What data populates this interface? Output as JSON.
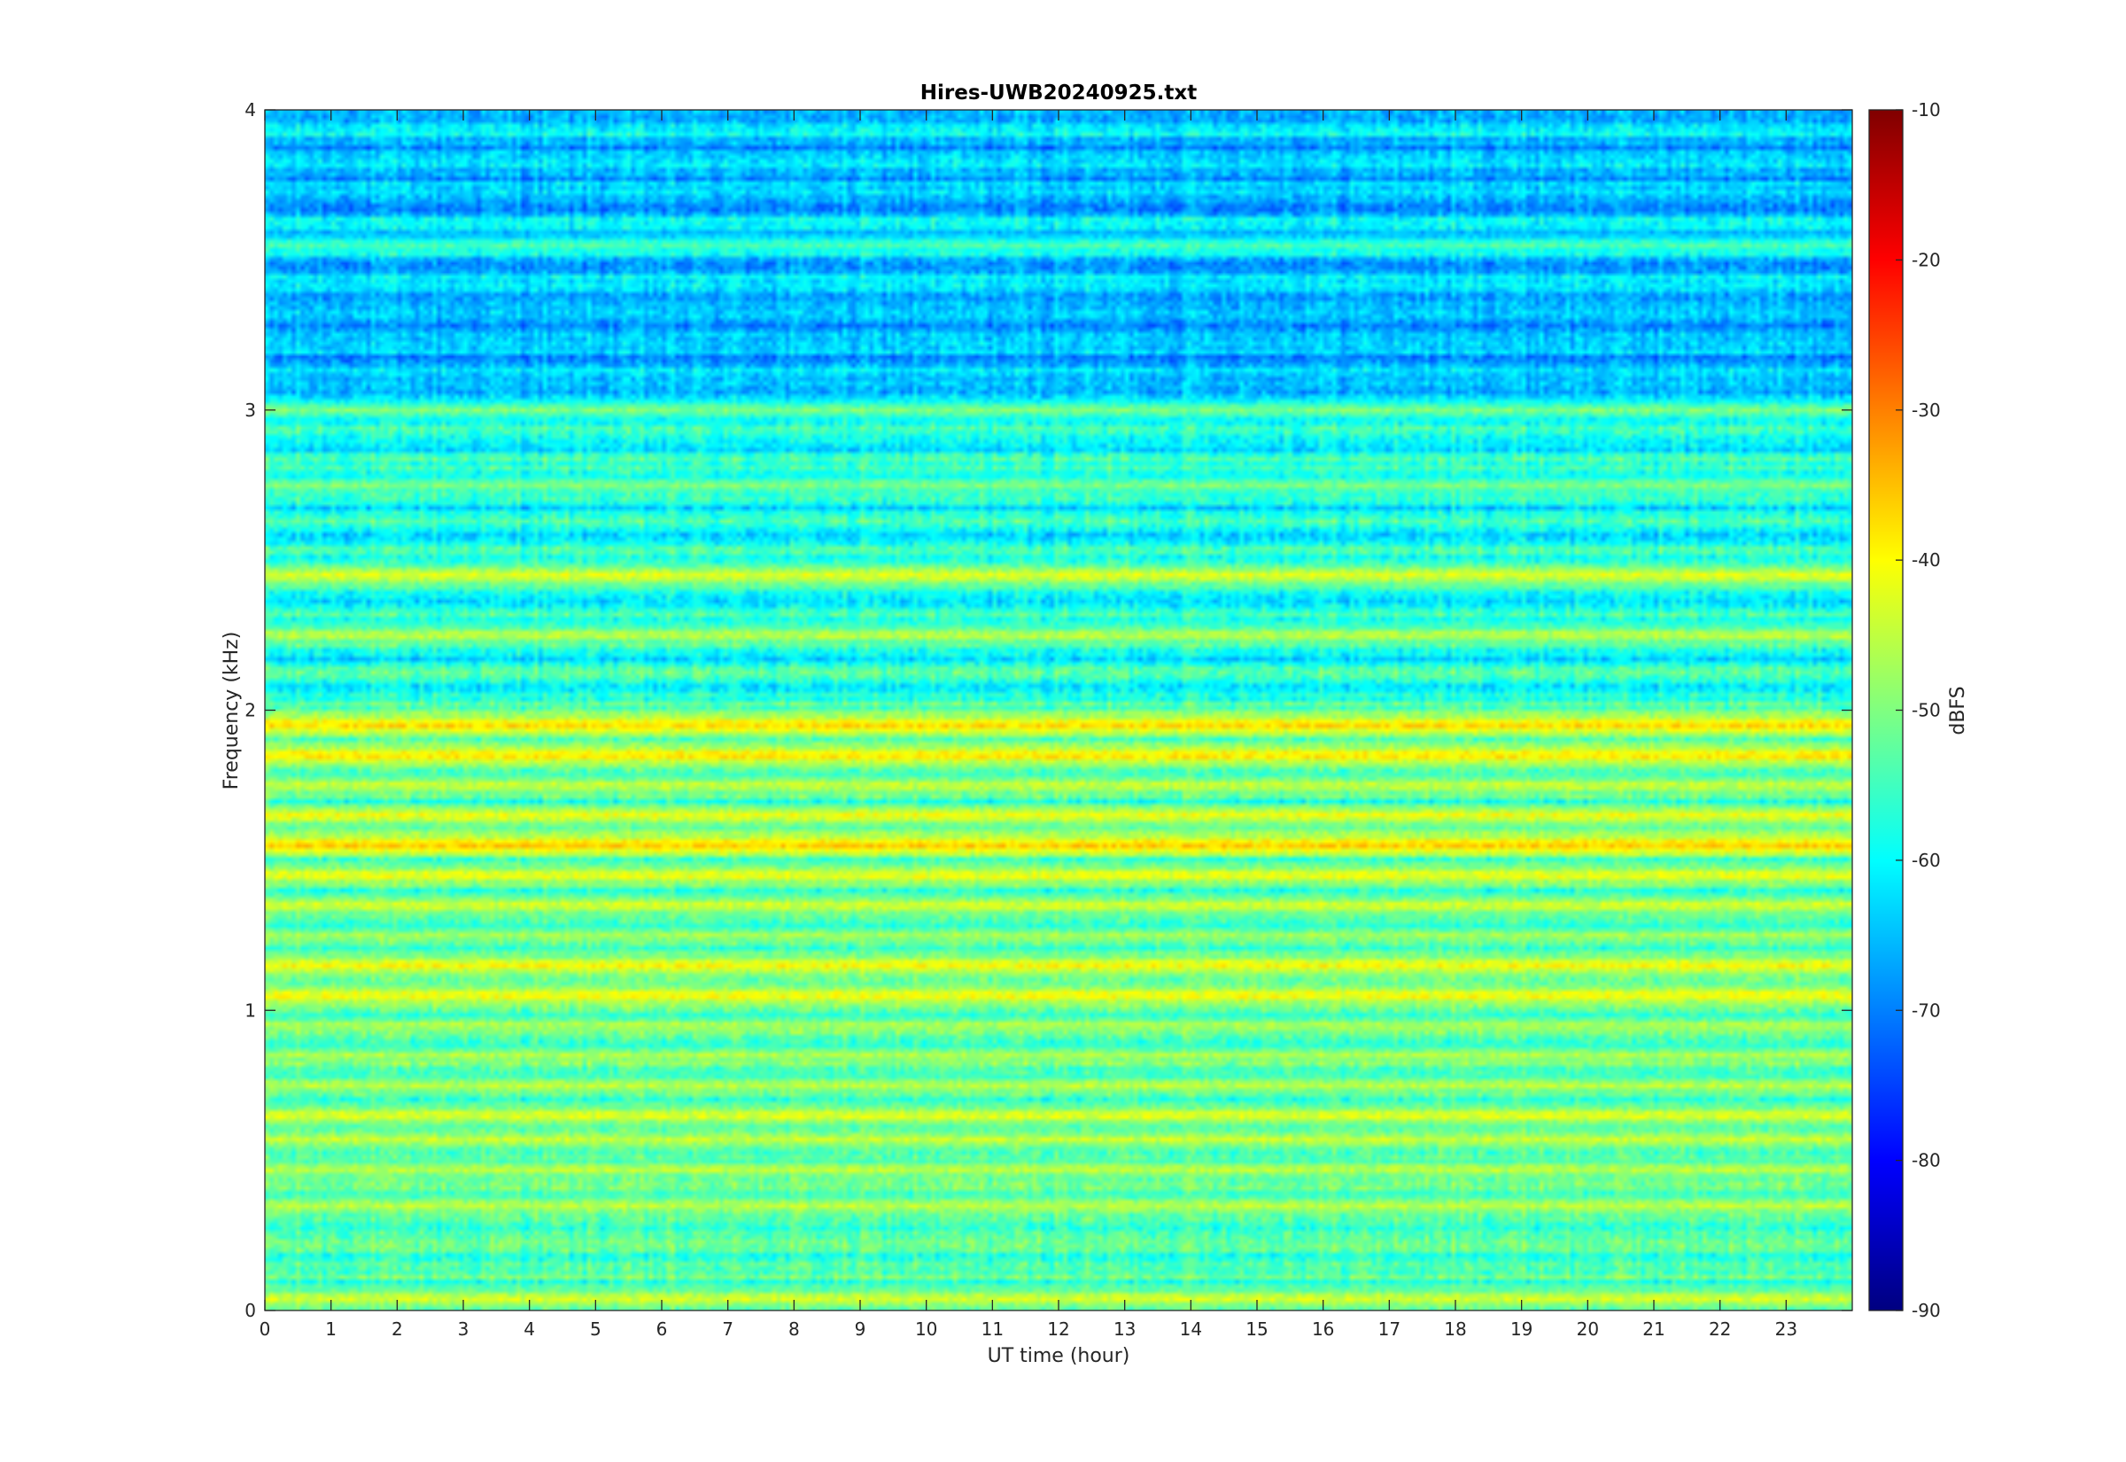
{
  "chart_data": {
    "type": "heatmap",
    "title": "Hires-UWB20240925.txt",
    "xlabel": "UT time (hour)",
    "ylabel": "Frequency (kHz)",
    "colorbar_label": "dBFS",
    "colormap": "jet",
    "xlim": [
      0,
      24
    ],
    "ylim": [
      0,
      4
    ],
    "clim": [
      -90,
      -10
    ],
    "xticks": [
      "0",
      "1",
      "2",
      "3",
      "4",
      "5",
      "6",
      "7",
      "8",
      "9",
      "10",
      "11",
      "12",
      "13",
      "14",
      "15",
      "16",
      "17",
      "18",
      "19",
      "20",
      "21",
      "22",
      "23"
    ],
    "yticks": [
      "0",
      "1",
      "2",
      "3",
      "4"
    ],
    "colorbar_ticks": [
      "-10",
      "-20",
      "-30",
      "-40",
      "-50",
      "-60",
      "-70",
      "-80",
      "-90"
    ],
    "grid": false,
    "bands": [
      {
        "f_khz": 0.04,
        "level_dbfs": -43,
        "note": "strong persistent low-frequency band"
      },
      {
        "f_khz": 0.35,
        "level_dbfs": -45
      },
      {
        "f_khz": 0.47,
        "level_dbfs": -45
      },
      {
        "f_khz": 0.57,
        "level_dbfs": -44
      },
      {
        "f_khz": 0.65,
        "level_dbfs": -42
      },
      {
        "f_khz": 0.75,
        "level_dbfs": -45
      },
      {
        "f_khz": 0.85,
        "level_dbfs": -46
      },
      {
        "f_khz": 0.95,
        "level_dbfs": -46
      },
      {
        "f_khz": 1.05,
        "level_dbfs": -40
      },
      {
        "f_khz": 1.15,
        "level_dbfs": -40
      },
      {
        "f_khz": 1.25,
        "level_dbfs": -47
      },
      {
        "f_khz": 1.35,
        "level_dbfs": -43
      },
      {
        "f_khz": 1.45,
        "level_dbfs": -41
      },
      {
        "f_khz": 1.55,
        "level_dbfs": -36
      },
      {
        "f_khz": 1.65,
        "level_dbfs": -41
      },
      {
        "f_khz": 1.75,
        "level_dbfs": -44
      },
      {
        "f_khz": 1.85,
        "level_dbfs": -38
      },
      {
        "f_khz": 1.95,
        "level_dbfs": -37
      },
      {
        "f_khz": 2.25,
        "level_dbfs": -45
      },
      {
        "f_khz": 2.45,
        "level_dbfs": -42
      },
      {
        "f_khz": 2.75,
        "level_dbfs": -50
      },
      {
        "f_khz": 3.0,
        "level_dbfs": -50
      },
      {
        "f_khz": 3.55,
        "level_dbfs": -54
      }
    ],
    "background_level_dbfs": {
      "0-2kHz": -55,
      "2-3kHz": -58,
      "3-4kHz": -64
    }
  }
}
